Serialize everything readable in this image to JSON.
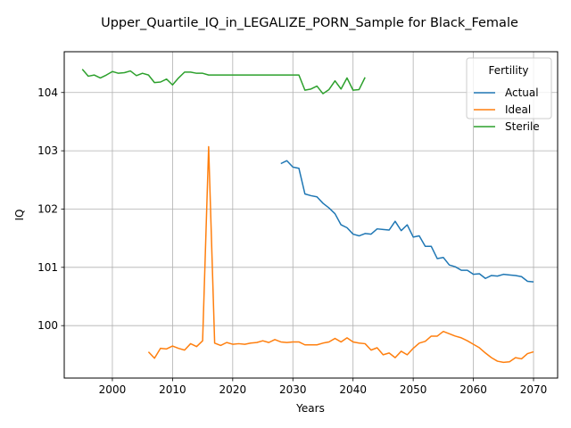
{
  "chart_data": {
    "type": "line",
    "title": "Upper_Quartile_IQ_in_LEGALIZE_PORN_Sample for Black_Female",
    "xlabel": "Years",
    "ylabel": "IQ",
    "xlim": [
      1992,
      2074
    ],
    "ylim": [
      99.1,
      104.7
    ],
    "xticks": [
      2000,
      2010,
      2020,
      2030,
      2040,
      2050,
      2060,
      2070
    ],
    "yticks": [
      100,
      101,
      102,
      103,
      104
    ],
    "grid": true,
    "legend": {
      "title": "Fertility",
      "position": "top-right"
    },
    "series": [
      {
        "name": "Actual",
        "color": "#1f77b4",
        "x": [
          2028,
          2029,
          2030,
          2031,
          2032,
          2033,
          2034,
          2035,
          2036,
          2037,
          2038,
          2039,
          2040,
          2041,
          2042,
          2043,
          2044,
          2045,
          2046,
          2047,
          2048,
          2049,
          2050,
          2051,
          2052,
          2053,
          2054,
          2055,
          2056,
          2057,
          2058,
          2059,
          2060,
          2061,
          2062,
          2063,
          2064,
          2065,
          2066,
          2067,
          2068,
          2069,
          2070
        ],
        "y": [
          102.78,
          102.83,
          102.72,
          102.7,
          102.26,
          102.23,
          102.21,
          102.1,
          102.02,
          101.92,
          101.73,
          101.68,
          101.57,
          101.54,
          101.58,
          101.57,
          101.66,
          101.65,
          101.64,
          101.79,
          101.63,
          101.73,
          101.52,
          101.54,
          101.36,
          101.36,
          101.15,
          101.17,
          101.04,
          101.01,
          100.95,
          100.95,
          100.88,
          100.89,
          100.81,
          100.86,
          100.85,
          100.88,
          100.87,
          100.86,
          100.84,
          100.76,
          100.75
        ]
      },
      {
        "name": "Ideal",
        "color": "#ff7f0e",
        "x": [
          2006,
          2007,
          2008,
          2009,
          2010,
          2011,
          2012,
          2013,
          2014,
          2015,
          2016,
          2017,
          2018,
          2019,
          2020,
          2021,
          2022,
          2023,
          2024,
          2025,
          2026,
          2027,
          2028,
          2029,
          2030,
          2031,
          2032,
          2033,
          2034,
          2035,
          2036,
          2037,
          2038,
          2039,
          2040,
          2041,
          2042,
          2043,
          2044,
          2045,
          2046,
          2047,
          2048,
          2049,
          2050,
          2051,
          2052,
          2053,
          2054,
          2055,
          2056,
          2057,
          2058,
          2059,
          2060,
          2061,
          2062,
          2063,
          2064,
          2065,
          2066,
          2067,
          2068,
          2069,
          2070
        ],
        "y": [
          99.55,
          99.44,
          99.61,
          99.6,
          99.65,
          99.61,
          99.58,
          99.69,
          99.64,
          99.74,
          103.07,
          99.7,
          99.66,
          99.71,
          99.68,
          99.69,
          99.68,
          99.7,
          99.71,
          99.74,
          99.71,
          99.76,
          99.72,
          99.71,
          99.72,
          99.72,
          99.67,
          99.67,
          99.67,
          99.7,
          99.72,
          99.78,
          99.72,
          99.79,
          99.72,
          99.7,
          99.69,
          99.58,
          99.62,
          99.5,
          99.53,
          99.45,
          99.56,
          99.5,
          99.61,
          99.7,
          99.73,
          99.82,
          99.82,
          99.9,
          99.86,
          99.82,
          99.79,
          99.74,
          99.68,
          99.62,
          99.53,
          99.45,
          99.39,
          99.37,
          99.38,
          99.45,
          99.43,
          99.52,
          99.55
        ]
      },
      {
        "name": "Sterile",
        "color": "#2ca02c",
        "x": [
          1995,
          1996,
          1997,
          1998,
          1999,
          2000,
          2001,
          2002,
          2003,
          2004,
          2005,
          2006,
          2007,
          2008,
          2009,
          2010,
          2011,
          2012,
          2013,
          2014,
          2015,
          2016,
          2017,
          2018,
          2019,
          2020,
          2021,
          2022,
          2023,
          2024,
          2025,
          2026,
          2027,
          2028,
          2029,
          2030,
          2031,
          2032,
          2033,
          2034,
          2035,
          2036,
          2037,
          2038,
          2039,
          2040,
          2041,
          2042
        ],
        "y": [
          104.4,
          104.28,
          104.3,
          104.25,
          104.3,
          104.36,
          104.33,
          104.34,
          104.37,
          104.29,
          104.33,
          104.3,
          104.17,
          104.18,
          104.23,
          104.13,
          104.25,
          104.35,
          104.35,
          104.33,
          104.33,
          104.3,
          104.3,
          104.3,
          104.3,
          104.3,
          104.3,
          104.3,
          104.3,
          104.3,
          104.3,
          104.3,
          104.3,
          104.3,
          104.3,
          104.3,
          104.3,
          104.04,
          104.06,
          104.11,
          103.98,
          104.05,
          104.2,
          104.06,
          104.25,
          104.04,
          104.05,
          104.26
        ]
      }
    ]
  }
}
